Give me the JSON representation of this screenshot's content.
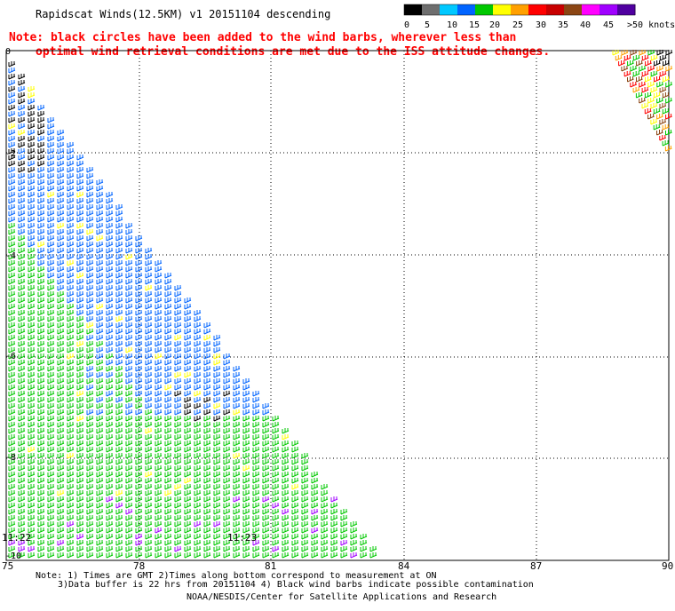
{
  "header": {
    "title": "Rapidscat Winds(12.5KM)  v1  20151104  descending",
    "note_line1": "Note: black circles have been added to the wind barbs, wherever less than",
    "note_line2": "optimal wind retrieval conditions are met due to the ISS attitude changes."
  },
  "legend": {
    "labels": [
      "0",
      "5",
      "10",
      "15",
      "20",
      "25",
      "30",
      "35",
      "40",
      "45",
      ">50 knots"
    ],
    "colors": [
      "#000000",
      "#6e6e6e",
      "#00c8ff",
      "#0064ff",
      "#00c800",
      "#ffff00",
      "#ffa000",
      "#ff0000",
      "#c80000",
      "#8b4513",
      "#ff00ff",
      "#a000ff",
      "#5000a0"
    ]
  },
  "map": {
    "lon_labels": [
      "75",
      "78",
      "81",
      "84",
      "87",
      "90"
    ],
    "lat_labels": [
      "0",
      "-2",
      "-4",
      "-6",
      "-8",
      "-10"
    ],
    "time_labels": [
      "11:22",
      "11:23"
    ]
  },
  "footer": {
    "note1": "Note: 1) Times are GMT 2)Times along bottom correspond to measurement at ON",
    "note2": "3)Data buffer is 22 hrs from 20151104 4) Black wind barbs indicate possible contamination",
    "credit": "NOAA/NESDIS/Center for Satellite Applications and Research"
  }
}
